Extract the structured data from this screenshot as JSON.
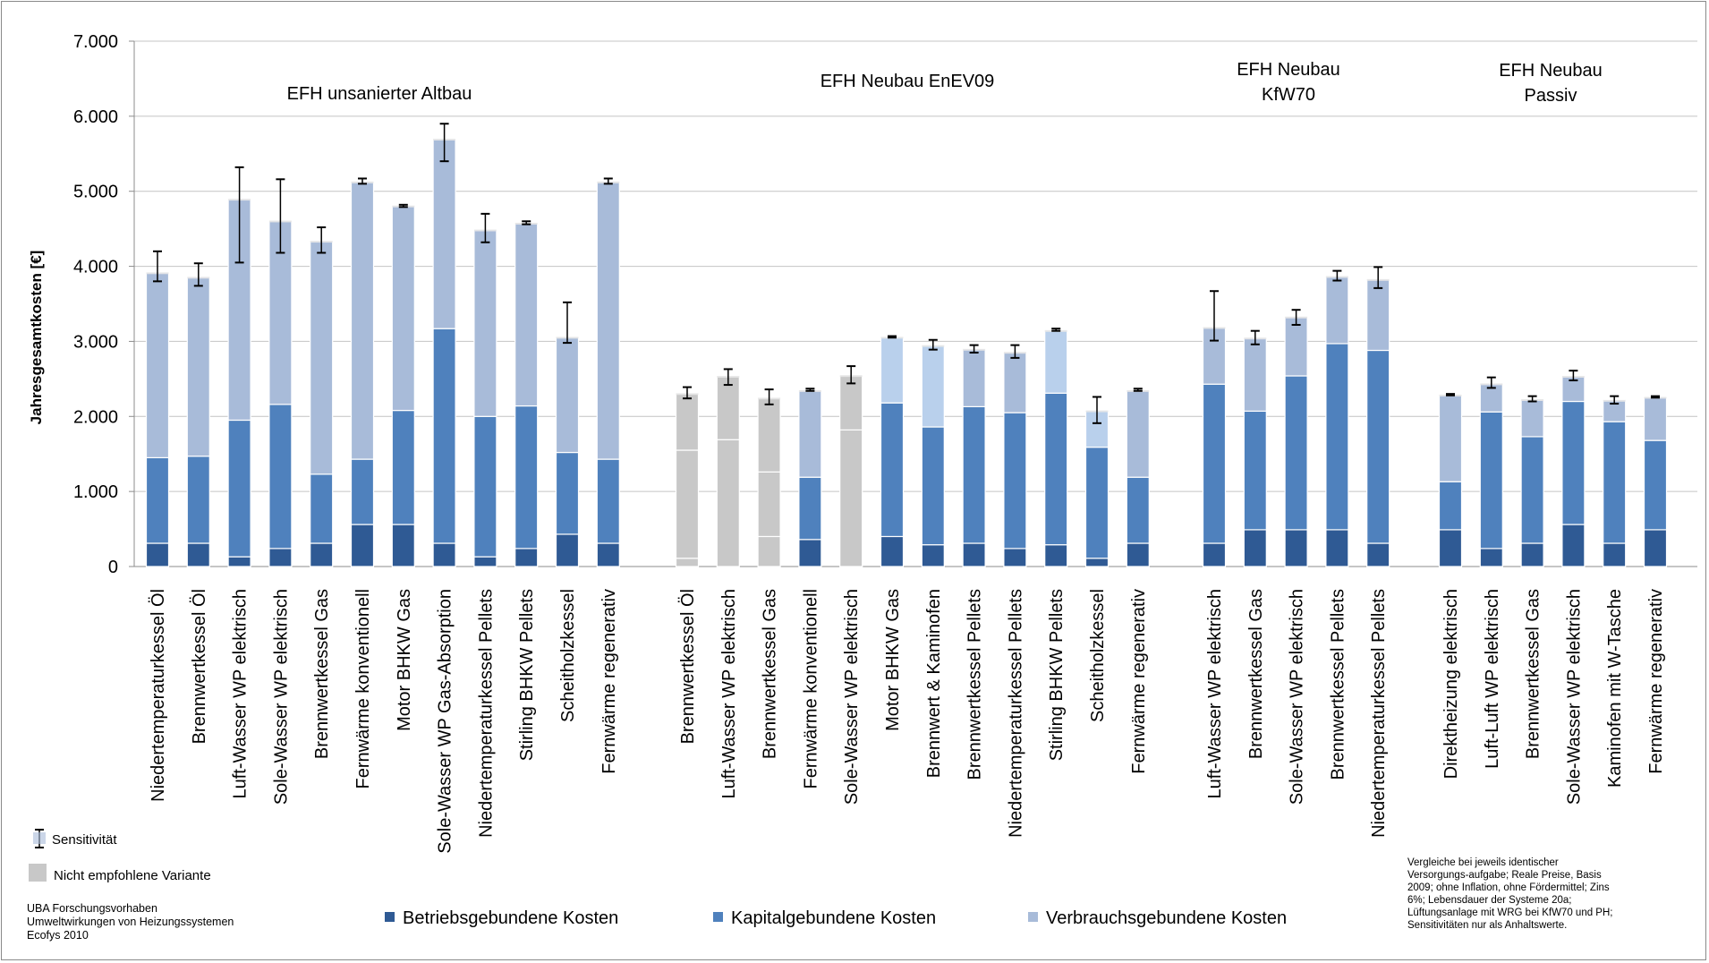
{
  "chart_data": {
    "type": "bar",
    "stacked": true,
    "ylabel": "Jahresgesamtkosten [€]",
    "ylim": [
      0,
      7000
    ],
    "yticks": [
      0,
      1000,
      2000,
      3000,
      4000,
      5000,
      6000,
      7000
    ],
    "ytick_labels": [
      "0",
      "1.000",
      "2.000",
      "3.000",
      "4.000",
      "5.000",
      "6.000",
      "7.000"
    ],
    "grid": true,
    "colors": {
      "betrieb": "#2f5a94",
      "kapital": "#4f81bd",
      "verbrauch": "#a8bbd9",
      "verbrauch_alt": "#b9d0ec",
      "gray": "#c8c8c8"
    },
    "series": [
      {
        "name": "Betriebsgebundene Kosten",
        "color_key": "betrieb"
      },
      {
        "name": "Kapitalgebundene Kosten",
        "color_key": "kapital"
      },
      {
        "name": "Verbrauchsgebundene Kosten",
        "color_key": "verbrauch"
      }
    ],
    "groups": [
      {
        "title_lines": [
          "EFH unsanierter Altbau"
        ],
        "bars": [
          {
            "label": "Niedertemperaturkessel Öl",
            "betrieb": 310,
            "kapital": 1140,
            "verbrauch": 2470,
            "err_low": 3800,
            "err_high": 4200
          },
          {
            "label": "Brennwertkessel Öl",
            "betrieb": 310,
            "kapital": 1160,
            "verbrauch": 2390,
            "err_low": 3740,
            "err_high": 4040
          },
          {
            "label": "Luft-Wasser WP elektrisch",
            "betrieb": 130,
            "kapital": 1820,
            "verbrauch": 2950,
            "err_low": 4050,
            "err_high": 5320
          },
          {
            "label": "Sole-Wasser WP elektrisch",
            "betrieb": 240,
            "kapital": 1920,
            "verbrauch": 2450,
            "err_low": 4180,
            "err_high": 5160
          },
          {
            "label": "Brennwertkessel Gas",
            "betrieb": 310,
            "kapital": 920,
            "verbrauch": 3110,
            "err_low": 4180,
            "err_high": 4520
          },
          {
            "label": "Fernwärme konventionell",
            "betrieb": 560,
            "kapital": 870,
            "verbrauch": 3700,
            "err_low": 5100,
            "err_high": 5170
          },
          {
            "label": "Motor BHKW Gas",
            "betrieb": 560,
            "kapital": 1520,
            "verbrauch": 2730,
            "err_low": 4790,
            "err_high": 4820
          },
          {
            "label": "Sole-Wasser WP Gas-Absorption",
            "betrieb": 310,
            "kapital": 2860,
            "verbrauch": 2530,
            "err_low": 5400,
            "err_high": 5900
          },
          {
            "label": "Niedertemperaturkessel Pellets",
            "betrieb": 130,
            "kapital": 1870,
            "verbrauch": 2490,
            "err_low": 4320,
            "err_high": 4700
          },
          {
            "label": "Stirling BHKW Pellets",
            "betrieb": 240,
            "kapital": 1900,
            "verbrauch": 2440,
            "err_low": 4560,
            "err_high": 4600
          },
          {
            "label": "Scheitholzkessel",
            "betrieb": 430,
            "kapital": 1090,
            "verbrauch": 1540,
            "err_low": 2980,
            "err_high": 3520
          },
          {
            "label": "Fernwärme regenerativ",
            "betrieb": 310,
            "kapital": 1120,
            "verbrauch": 3700,
            "err_low": 5100,
            "err_high": 5170
          }
        ]
      },
      {
        "title_lines": [
          "EFH Neubau  EnEV09"
        ],
        "bars": [
          {
            "label": "Brennwertkessel Öl",
            "gray": true,
            "betrieb": 110,
            "kapital": 1440,
            "verbrauch": 760,
            "err_low": 2240,
            "err_high": 2390
          },
          {
            "label": "Luft-Wasser WP elektrisch",
            "gray": true,
            "betrieb": 0,
            "kapital": 1690,
            "verbrauch": 850,
            "err_low": 2420,
            "err_high": 2630
          },
          {
            "label": "Brennwertkessel Gas",
            "gray": true,
            "betrieb": 400,
            "kapital": 860,
            "verbrauch": 990,
            "err_low": 2160,
            "err_high": 2360
          },
          {
            "label": "Fernwärme konventionell",
            "betrieb": 360,
            "kapital": 830,
            "verbrauch": 1160,
            "err_low": 2340,
            "err_high": 2370
          },
          {
            "label": "Sole-Wasser WP elektrisch",
            "gray": true,
            "betrieb": 0,
            "kapital": 1820,
            "verbrauch": 730,
            "err_low": 2440,
            "err_high": 2670
          },
          {
            "label": "Motor BHKW Gas",
            "light": true,
            "betrieb": 400,
            "kapital": 1780,
            "verbrauch": 880,
            "err_low": 3050,
            "err_high": 3070
          },
          {
            "label": "Brennwert & Kaminofen",
            "light": true,
            "betrieb": 290,
            "kapital": 1570,
            "verbrauch": 1090,
            "err_low": 2890,
            "err_high": 3020
          },
          {
            "label": "Brennwertkessel Pellets",
            "betrieb": 310,
            "kapital": 1820,
            "verbrauch": 770,
            "err_low": 2850,
            "err_high": 2950
          },
          {
            "label": "Niedertemperaturkessel Pellets",
            "betrieb": 240,
            "kapital": 1810,
            "verbrauch": 810,
            "err_low": 2780,
            "err_high": 2950
          },
          {
            "label": "Stirling BHKW Pellets",
            "light": true,
            "betrieb": 290,
            "kapital": 2020,
            "verbrauch": 840,
            "err_low": 3140,
            "err_high": 3170
          },
          {
            "label": "Scheitholzkessel",
            "light": true,
            "betrieb": 110,
            "kapital": 1480,
            "verbrauch": 490,
            "err_low": 1910,
            "err_high": 2260
          },
          {
            "label": "Fernwärme regenerativ",
            "betrieb": 310,
            "kapital": 880,
            "verbrauch": 1160,
            "err_low": 2340,
            "err_high": 2370
          }
        ]
      },
      {
        "title_lines": [
          "EFH Neubau",
          "KfW70"
        ],
        "bars": [
          {
            "label": "Luft-Wasser WP elektrisch",
            "betrieb": 310,
            "kapital": 2120,
            "verbrauch": 760,
            "err_low": 3010,
            "err_high": 3670
          },
          {
            "label": "Brennwertkessel Gas",
            "betrieb": 490,
            "kapital": 1580,
            "verbrauch": 980,
            "err_low": 2960,
            "err_high": 3140
          },
          {
            "label": "Sole-Wasser WP elektrisch",
            "betrieb": 490,
            "kapital": 2050,
            "verbrauch": 790,
            "err_low": 3220,
            "err_high": 3420
          },
          {
            "label": "Brennwertkessel Pellets",
            "betrieb": 490,
            "kapital": 2480,
            "verbrauch": 900,
            "err_low": 3810,
            "err_high": 3940
          },
          {
            "label": "Niedertemperaturkessel Pellets",
            "betrieb": 310,
            "kapital": 2570,
            "verbrauch": 950,
            "err_low": 3710,
            "err_high": 3990
          }
        ]
      },
      {
        "title_lines": [
          "EFH Neubau",
          "Passiv"
        ],
        "bars": [
          {
            "label": "Direktheizung elektrisch",
            "betrieb": 490,
            "kapital": 640,
            "verbrauch": 1160,
            "err_low": 2280,
            "err_high": 2300
          },
          {
            "label": "Luft-Luft WP elektrisch",
            "betrieb": 240,
            "kapital": 1820,
            "verbrauch": 380,
            "err_low": 2380,
            "err_high": 2520
          },
          {
            "label": "Brennwertkessel Gas",
            "betrieb": 310,
            "kapital": 1420,
            "verbrauch": 500,
            "err_low": 2200,
            "err_high": 2270
          },
          {
            "label": "Sole-Wasser WP elektrisch",
            "betrieb": 560,
            "kapital": 1640,
            "verbrauch": 340,
            "err_low": 2480,
            "err_high": 2610
          },
          {
            "label": "Kaminofen mit W-Tasche",
            "betrieb": 310,
            "kapital": 1620,
            "verbrauch": 290,
            "err_low": 2170,
            "err_high": 2270
          },
          {
            "label": "Fernwärme regenerativ",
            "betrieb": 490,
            "kapital": 1190,
            "verbrauch": 580,
            "err_low": 2250,
            "err_high": 2270
          }
        ]
      }
    ],
    "aux_legend": [
      {
        "kind": "errorbar",
        "label": "Sensitivität"
      },
      {
        "kind": "gray",
        "label": "Nicht empfohlene Variante"
      }
    ]
  },
  "notes": {
    "source_lines": [
      "UBA Forschungsvorhaben",
      "Umweltwirkungen von Heizungssystemen",
      "Ecofys 2010"
    ],
    "comparison_lines": [
      "Vergleiche bei jeweils identischer",
      "Versorgungs-aufgabe; Reale Preise, Basis",
      "2009; ohne Inflation, ohne Fördermittel; Zins",
      "6%; Lebensdauer der Systeme 20a;",
      "Lüftungsanlage mit WRG bei KfW70 und PH;",
      "Sensitivitäten nur als Anhaltswerte."
    ]
  }
}
